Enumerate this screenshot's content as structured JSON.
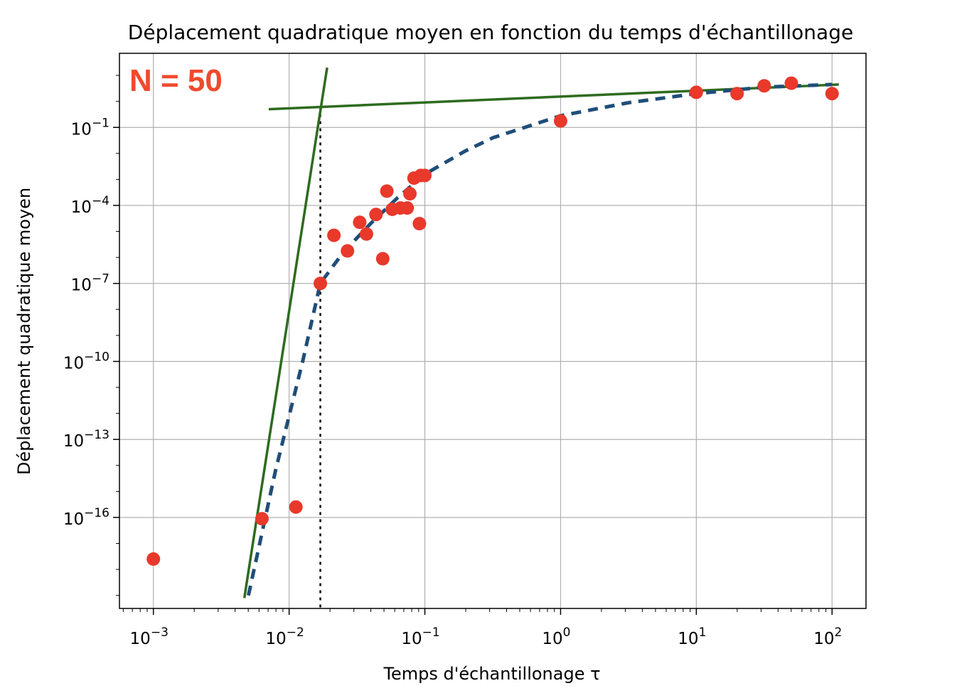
{
  "chart_data": {
    "type": "scatter",
    "title": "Déplacement quadratique moyen en fonction du temps d'échantillonage",
    "xlabel": "Temps d'échantillonage τ",
    "ylabel": "Déplacement quadratique moyen",
    "xscale": "log",
    "yscale": "log",
    "xlim_log10": [
      -3.25,
      2.25
    ],
    "ylim_log10": [
      -19.5,
      1.85
    ],
    "grid": true,
    "x_ticks": [
      {
        "base": "10",
        "exp": "−3",
        "log10": -3
      },
      {
        "base": "10",
        "exp": "−2",
        "log10": -2
      },
      {
        "base": "10",
        "exp": "−1",
        "log10": -1
      },
      {
        "base": "10",
        "exp": "0",
        "log10": 0
      },
      {
        "base": "10",
        "exp": "1",
        "log10": 1
      },
      {
        "base": "10",
        "exp": "2",
        "log10": 2
      }
    ],
    "y_ticks": [
      {
        "base": "10",
        "exp": "−1",
        "log10": -1
      },
      {
        "base": "10",
        "exp": "−4",
        "log10": -4
      },
      {
        "base": "10",
        "exp": "−7",
        "log10": -7
      },
      {
        "base": "10",
        "exp": "−10",
        "log10": -10
      },
      {
        "base": "10",
        "exp": "−13",
        "log10": -13
      },
      {
        "base": "10",
        "exp": "−16",
        "log10": -16
      }
    ],
    "annotation": "N = 50",
    "colors": {
      "points": "#e8392b",
      "fit": "#1f4e79",
      "asymptotes": "#2e6b1f",
      "annotation": "#f04a2e",
      "grid": "#b0b0b0"
    },
    "scatter_points_log10": [
      [
        -3.0,
        -17.6
      ],
      [
        -2.2,
        -16.05
      ],
      [
        -1.95,
        -15.6
      ],
      [
        -1.77,
        -7.0
      ],
      [
        -1.67,
        -5.15
      ],
      [
        -1.57,
        -5.75
      ],
      [
        -1.48,
        -4.65
      ],
      [
        -1.43,
        -5.1
      ],
      [
        -1.36,
        -4.35
      ],
      [
        -1.31,
        -6.05
      ],
      [
        -1.28,
        -3.45
      ],
      [
        -1.24,
        -4.15
      ],
      [
        -1.18,
        -4.1
      ],
      [
        -1.13,
        -4.1
      ],
      [
        -1.11,
        -3.55
      ],
      [
        -1.08,
        -2.95
      ],
      [
        -1.04,
        -4.7
      ],
      [
        -1.03,
        -2.85
      ],
      [
        -1.0,
        -2.85
      ],
      [
        0.0,
        -0.75
      ],
      [
        1.0,
        0.35
      ],
      [
        1.3,
        0.3
      ],
      [
        1.5,
        0.6
      ],
      [
        1.7,
        0.7
      ],
      [
        2.0,
        0.3
      ]
    ],
    "fit_curve_log10": [
      [
        -2.3,
        -19.0
      ],
      [
        -2.1,
        -14.2
      ],
      [
        -1.9,
        -10.0
      ],
      [
        -1.77,
        -7.0
      ],
      [
        -1.6,
        -5.8
      ],
      [
        -1.4,
        -4.7
      ],
      [
        -1.2,
        -3.7
      ],
      [
        -1.0,
        -2.8
      ],
      [
        -0.7,
        -1.9
      ],
      [
        -0.5,
        -1.4
      ],
      [
        0.0,
        -0.55
      ],
      [
        0.5,
        -0.05
      ],
      [
        1.0,
        0.3
      ],
      [
        1.5,
        0.55
      ],
      [
        2.0,
        0.65
      ]
    ],
    "asymptote_lines_log10": [
      {
        "name": "short-time",
        "points": [
          [
            -2.33,
            -19.1
          ],
          [
            -1.72,
            1.3
          ]
        ]
      },
      {
        "name": "long-time",
        "points": [
          [
            -2.15,
            -0.3
          ],
          [
            2.05,
            0.65
          ]
        ]
      }
    ],
    "crossover_log10": -1.77
  }
}
